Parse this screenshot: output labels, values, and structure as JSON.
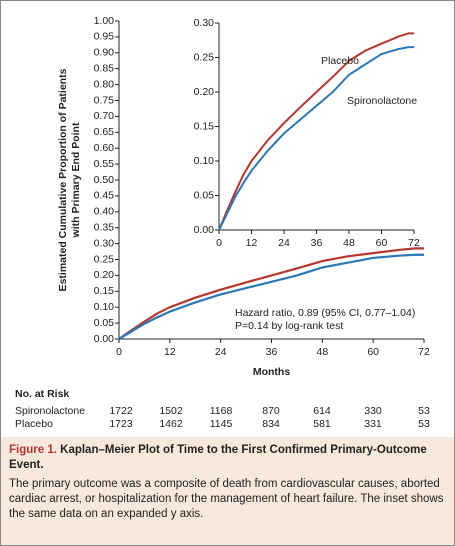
{
  "chart_data": [
    {
      "type": "line",
      "ylabel": [
        "Estimated Cumulative Proportion of Patients",
        "with Primary End Point"
      ],
      "xlabel": "Months",
      "x": [
        0,
        3,
        6,
        9,
        12,
        18,
        24,
        30,
        36,
        42,
        48,
        54,
        60,
        66,
        70,
        72
      ],
      "series": [
        {
          "name": "Placebo",
          "color": "#b8352b",
          "values": [
            0,
            0.028,
            0.055,
            0.08,
            0.1,
            0.13,
            0.155,
            0.178,
            0.2,
            0.222,
            0.245,
            0.26,
            0.27,
            0.28,
            0.285,
            0.285
          ]
        },
        {
          "name": "Spironolactone",
          "color": "#2a78b8",
          "values": [
            0,
            0.024,
            0.048,
            0.068,
            0.086,
            0.115,
            0.14,
            0.16,
            0.18,
            0.2,
            0.225,
            0.24,
            0.255,
            0.262,
            0.265,
            0.265
          ]
        }
      ],
      "xlim": [
        0,
        72
      ],
      "xticks": [
        0,
        12,
        24,
        36,
        48,
        60,
        72
      ],
      "ylim": [
        0,
        1
      ],
      "yticks": [
        {
          "value": 0,
          "label": "0.00"
        },
        {
          "value": 0.05,
          "label": "0.05"
        },
        {
          "value": 0.1,
          "label": "0.10"
        },
        {
          "value": 0.15,
          "label": "0.15"
        },
        {
          "value": 0.2,
          "label": "0.20"
        },
        {
          "value": 0.25,
          "label": "0.25"
        },
        {
          "value": 0.3,
          "label": "0.30"
        },
        {
          "value": 0.35,
          "label": "0.35"
        },
        {
          "value": 0.4,
          "label": "0.40"
        },
        {
          "value": 0.45,
          "label": "0.45"
        },
        {
          "value": 0.5,
          "label": "0.50"
        },
        {
          "value": 0.55,
          "label": "0.55"
        },
        {
          "value": 0.6,
          "label": "0.60"
        },
        {
          "value": 0.65,
          "label": "0.65"
        },
        {
          "value": 0.7,
          "label": "0.70"
        },
        {
          "value": 0.75,
          "label": "0.75"
        },
        {
          "value": 0.8,
          "label": "0.80"
        },
        {
          "value": 0.85,
          "label": "0.85"
        },
        {
          "value": 0.9,
          "label": "0.90"
        },
        {
          "value": 0.95,
          "label": "0.95"
        },
        {
          "value": 1,
          "label": "1.00"
        }
      ],
      "annotations": [
        "Hazard ratio, 0.89 (95% CI, 0.77–1.04)",
        "P=0.14 by log-rank test"
      ]
    },
    {
      "type": "line",
      "x": [
        0,
        3,
        6,
        9,
        12,
        18,
        24,
        30,
        36,
        42,
        48,
        54,
        60,
        66,
        70,
        72
      ],
      "series": [
        {
          "name": "Placebo",
          "color": "#b8352b",
          "values": [
            0,
            0.028,
            0.055,
            0.08,
            0.1,
            0.13,
            0.155,
            0.178,
            0.2,
            0.222,
            0.245,
            0.26,
            0.27,
            0.28,
            0.285,
            0.285
          ]
        },
        {
          "name": "Spironolactone",
          "color": "#2a78b8",
          "values": [
            0,
            0.024,
            0.048,
            0.068,
            0.086,
            0.115,
            0.14,
            0.16,
            0.18,
            0.2,
            0.225,
            0.24,
            0.255,
            0.262,
            0.265,
            0.265
          ]
        }
      ],
      "xlim": [
        0,
        72
      ],
      "xticks": [
        0,
        12,
        24,
        36,
        48,
        60,
        72
      ],
      "ylim": [
        0,
        0.3
      ],
      "yticks": [
        {
          "value": 0,
          "label": "0.00"
        },
        {
          "value": 0.05,
          "label": "0.05"
        },
        {
          "value": 0.1,
          "label": "0.10"
        },
        {
          "value": 0.15,
          "label": "0.15"
        },
        {
          "value": 0.2,
          "label": "0.20"
        },
        {
          "value": 0.25,
          "label": "0.25"
        },
        {
          "value": 0.3,
          "label": "0.30"
        }
      ]
    }
  ],
  "risk_table": {
    "title": "No. at Risk",
    "rows": [
      {
        "label": "Spironolactone",
        "values": [
          1722,
          1502,
          1168,
          870,
          614,
          330,
          53
        ]
      },
      {
        "label": "Placebo",
        "values": [
          1723,
          1462,
          1145,
          834,
          581,
          331,
          53
        ]
      }
    ]
  },
  "caption": {
    "label": "Figure 1.",
    "title": "Kaplan–Meier Plot of Time to the First Confirmed Primary-Outcome Event.",
    "text": "The primary outcome was a composite of death from cardiovascular causes, aborted cardiac arrest, or hospitalization for the management of heart failure. The inset shows the same data on an expanded y axis."
  }
}
